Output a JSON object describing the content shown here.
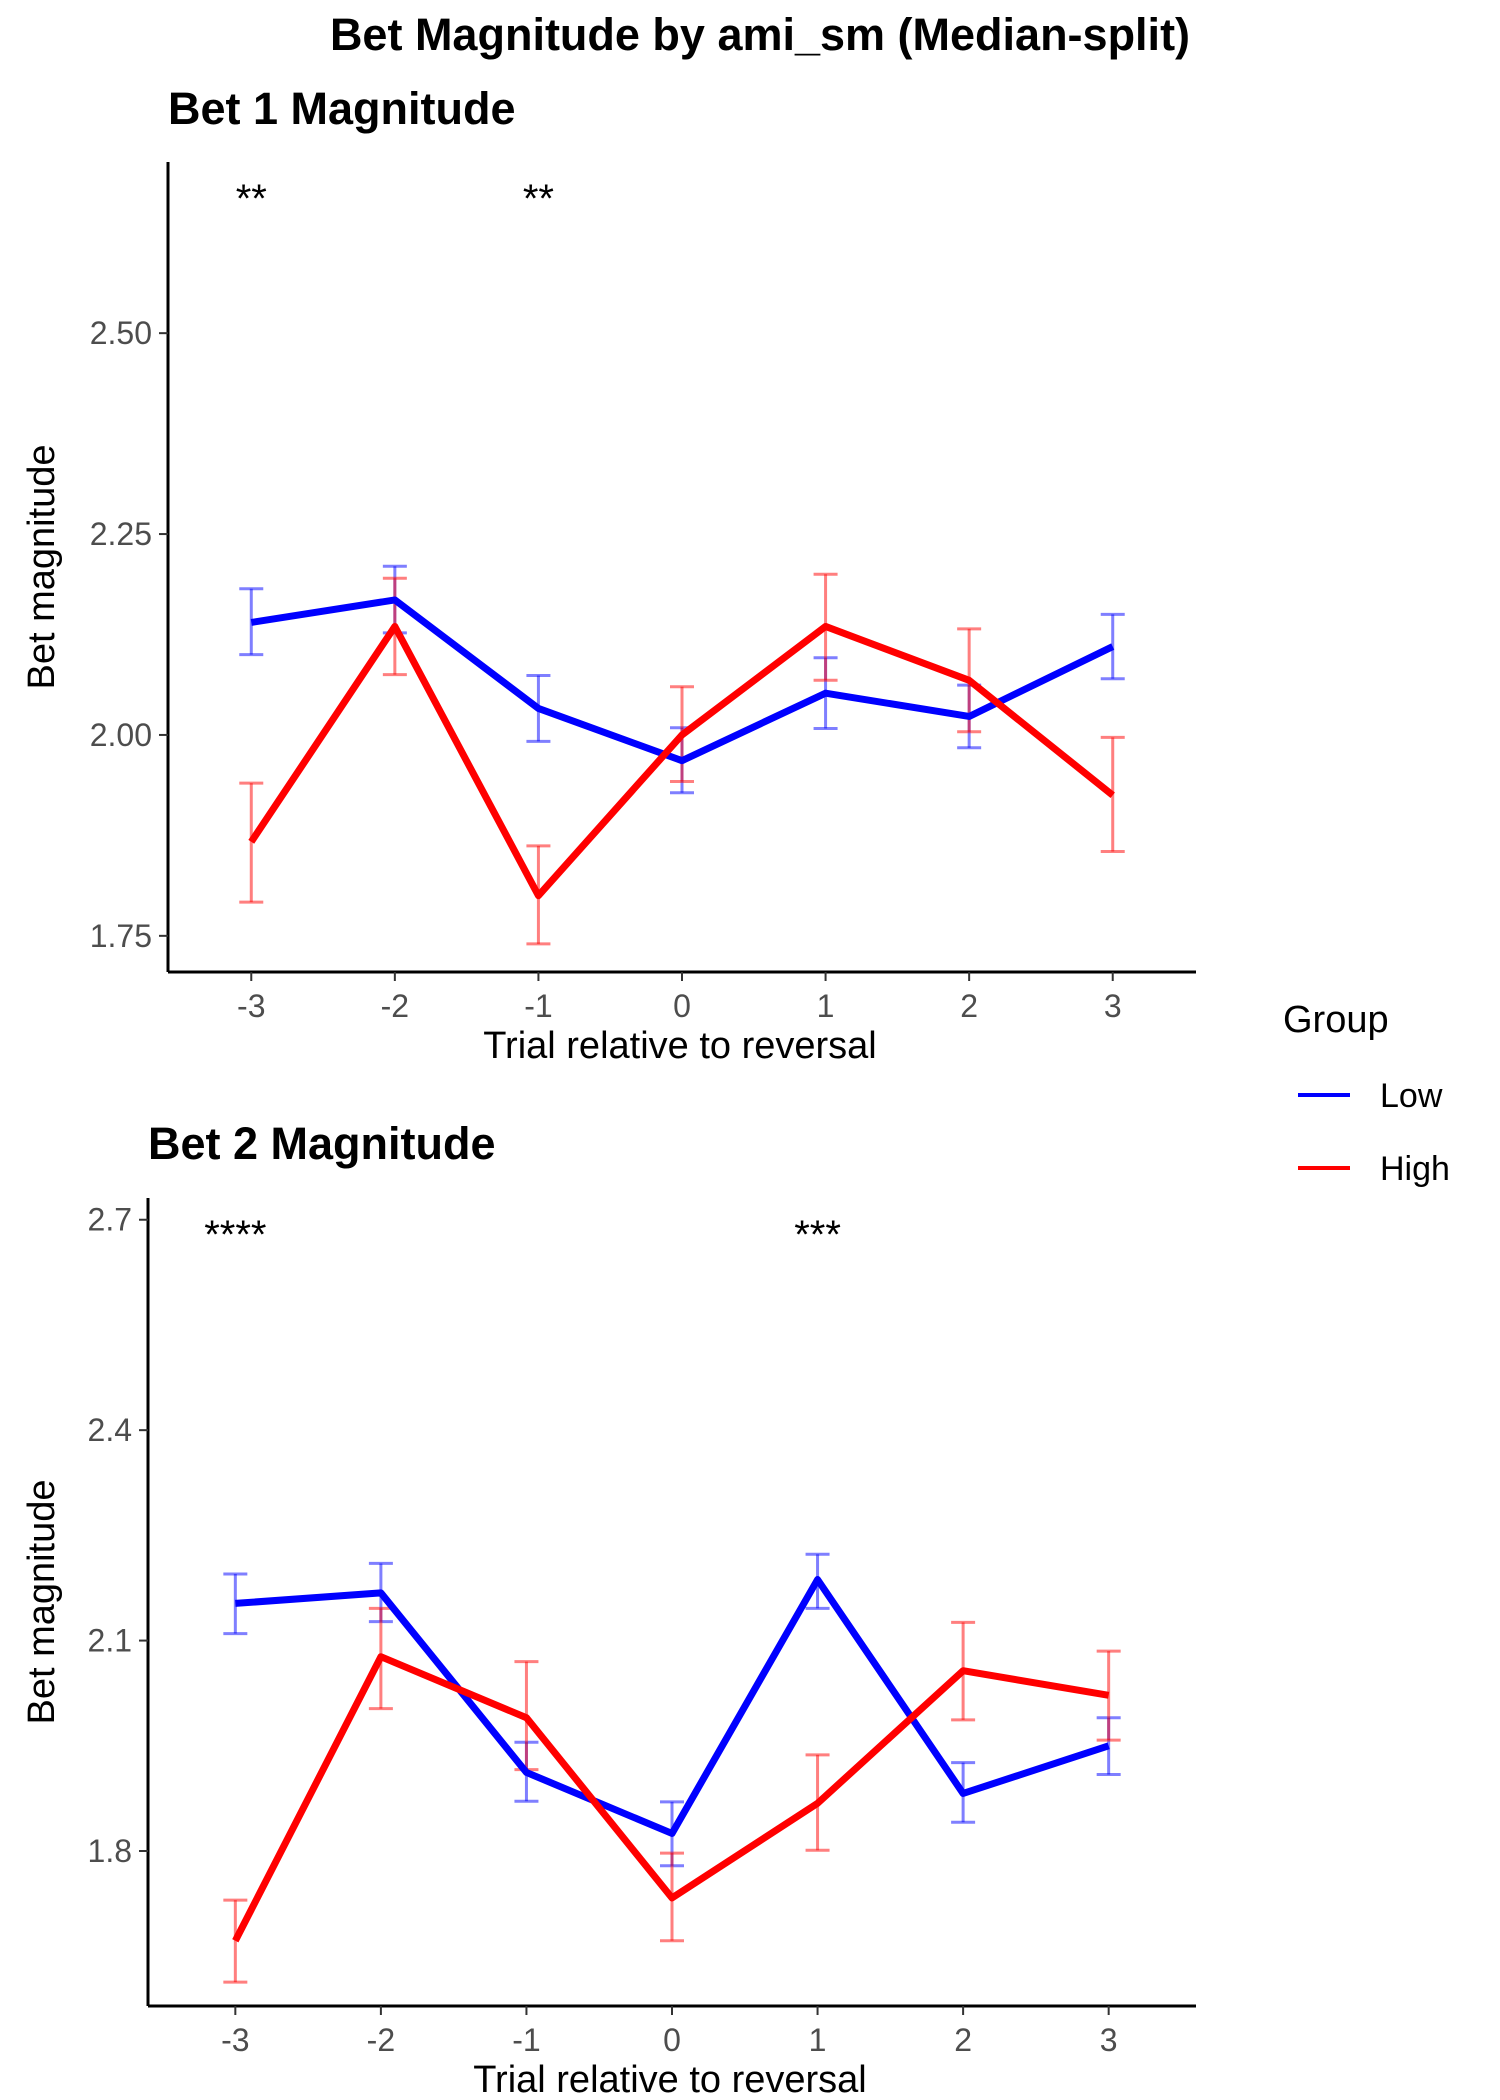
{
  "title": "Bet Magnitude by ami_sm (Median-split)",
  "legend": {
    "title": "Group",
    "placement": "right",
    "entries": [
      {
        "label": "Low",
        "color": "#0000ff"
      },
      {
        "label": "High",
        "color": "#ff0000"
      }
    ]
  },
  "chart_data": [
    {
      "type": "line",
      "title": "Bet 1 Magnitude",
      "xlabel": "Trial relative to reversal",
      "ylabel": "Bet magnitude",
      "x": [
        -3,
        -2,
        -1,
        0,
        1,
        2,
        3
      ],
      "x_tick_labels": [
        "-3",
        "-2",
        "-1",
        "0",
        "1",
        "2",
        "3"
      ],
      "xlim": [
        -3.58,
        3.58
      ],
      "ylim": [
        1.705,
        2.713
      ],
      "y_ticks": [
        1.75,
        2.0,
        2.25,
        2.5
      ],
      "y_tick_labels": [
        "1.75",
        "2.00",
        "2.25",
        "2.50"
      ],
      "grid": false,
      "series": [
        {
          "name": "Low",
          "color": "#0000ff",
          "values": [
            2.14,
            2.168,
            2.033,
            1.968,
            2.052,
            2.023,
            2.11
          ],
          "error_low": [
            2.1,
            2.127,
            1.992,
            1.928,
            2.008,
            1.984,
            2.07
          ],
          "error_high": [
            2.182,
            2.21,
            2.074,
            2.009,
            2.096,
            2.062,
            2.15
          ]
        },
        {
          "name": "High",
          "color": "#ff0000",
          "values": [
            1.867,
            2.135,
            1.8,
            2.0,
            2.135,
            2.068,
            1.925
          ],
          "error_low": [
            1.792,
            2.075,
            1.74,
            1.942,
            2.068,
            2.004,
            1.855
          ],
          "error_high": [
            1.94,
            2.195,
            1.862,
            2.06,
            2.2,
            2.132,
            1.997
          ]
        }
      ],
      "annotations": [
        {
          "x": -3,
          "text": "**"
        },
        {
          "x": -1,
          "text": "**"
        }
      ]
    },
    {
      "type": "line",
      "title": "Bet 2 Magnitude",
      "xlabel": "Trial relative to reversal",
      "ylabel": "Bet magnitude",
      "x": [
        -3,
        -2,
        -1,
        0,
        1,
        2,
        3
      ],
      "x_tick_labels": [
        "-3",
        "-2",
        "-1",
        "0",
        "1",
        "2",
        "3"
      ],
      "xlim": [
        -3.6,
        3.6
      ],
      "ylim": [
        1.579,
        2.731
      ],
      "y_ticks": [
        1.8,
        2.1,
        2.4,
        2.7
      ],
      "y_tick_labels": [
        "1.8",
        "2.1",
        "2.4",
        "2.7"
      ],
      "grid": false,
      "series": [
        {
          "name": "Low",
          "color": "#0000ff",
          "values": [
            2.153,
            2.168,
            1.912,
            1.825,
            2.187,
            1.882,
            1.95
          ],
          "error_low": [
            2.11,
            2.127,
            1.871,
            1.779,
            2.146,
            1.841,
            1.909
          ],
          "error_high": [
            2.195,
            2.21,
            1.955,
            1.87,
            2.223,
            1.926,
            1.99
          ]
        },
        {
          "name": "High",
          "color": "#ff0000",
          "values": [
            1.672,
            2.077,
            1.99,
            1.733,
            1.868,
            2.057,
            2.022
          ],
          "error_low": [
            1.613,
            2.003,
            1.916,
            1.672,
            1.801,
            1.987,
            1.958
          ],
          "error_high": [
            1.73,
            2.146,
            2.07,
            1.797,
            1.937,
            2.126,
            2.085
          ]
        }
      ],
      "annotations": [
        {
          "x": -3,
          "text": "****"
        },
        {
          "x": 1,
          "text": "***"
        }
      ]
    }
  ]
}
